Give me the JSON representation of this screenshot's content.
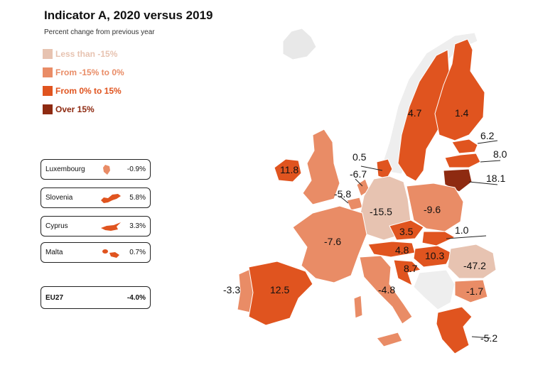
{
  "title": "Indicator A, 2020 versus 2019",
  "subtitle": "Percent change from previous year",
  "legend": [
    {
      "label": "Less than -15%",
      "color": "#e7c3b1"
    },
    {
      "label": "From -15% to 0%",
      "color": "#e98c66"
    },
    {
      "label": "From 0% to 15%",
      "color": "#e0541f"
    },
    {
      "label": "Over 15%",
      "color": "#8e2a11"
    }
  ],
  "small_countries": [
    {
      "name": "Luxembourg",
      "value": "-0.9%"
    },
    {
      "name": "Slovenia",
      "value": "5.8%"
    },
    {
      "name": "Cyprus",
      "value": "3.3%"
    },
    {
      "name": "Malta",
      "value": "0.7%"
    }
  ],
  "eu": {
    "name": "EU27",
    "value": "-4.0%"
  },
  "map_labels": {
    "sweden": "4.7",
    "finland": "1.4",
    "estonia": "6.2",
    "latvia": "8.0",
    "lithuania": "18.1",
    "denmark": "0.5",
    "netherlands": "-6.7",
    "belgium": "-5.8",
    "ireland": "11.8",
    "germany": "-15.5",
    "poland": "-9.6",
    "czechia": "3.5",
    "slovakia": "1.0",
    "austria": "4.8",
    "hungary": "10.3",
    "croatia": "8.7",
    "romania": "-47.2",
    "bulgaria": "-1.7",
    "france": "-7.6",
    "portugal": "-3.3",
    "spain": "12.5",
    "italy": "-4.8",
    "greece": "-5.2"
  }
}
